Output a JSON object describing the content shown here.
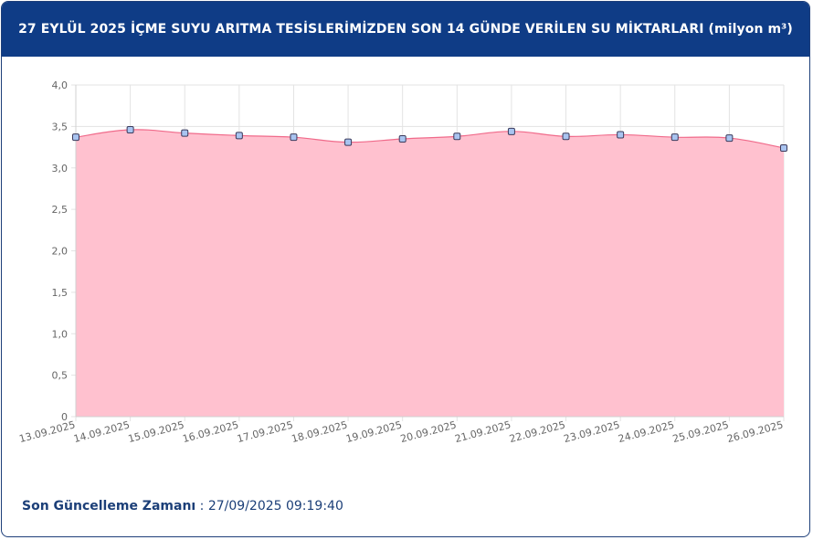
{
  "header": {
    "title": "27 EYLÜL 2025 İÇME SUYU ARITMA TESİSLERİMİZDEN SON 14 GÜNDE VERİLEN SU MİKTARLARI (milyon m³)"
  },
  "footer": {
    "label": "Son Güncelleme Zamanı",
    "separator": " : ",
    "value": "27/09/2025 09:19:40"
  },
  "colors": {
    "header_bg": "#0f3c86",
    "area_fill": "#ffc1cf",
    "line": "#f06a8a",
    "marker_fill": "#a9c4f0",
    "marker_stroke": "#3b3b5c",
    "grid": "#e3e3e3"
  },
  "chart_data": {
    "type": "area",
    "title": "",
    "xlabel": "",
    "ylabel": "",
    "ylim": [
      0,
      4
    ],
    "yticks": [
      "0",
      "0,5",
      "1,0",
      "1,5",
      "2,0",
      "2,5",
      "3,0",
      "3,5",
      "4,0"
    ],
    "grid": true,
    "legend": "none",
    "categories": [
      "13.09.2025",
      "14.09.2025",
      "15.09.2025",
      "16.09.2025",
      "17.09.2025",
      "18.09.2025",
      "19.09.2025",
      "20.09.2025",
      "21.09.2025",
      "22.09.2025",
      "23.09.2025",
      "24.09.2025",
      "25.09.2025",
      "26.09.2025"
    ],
    "series": [
      {
        "values": [
          3.37,
          3.46,
          3.42,
          3.39,
          3.37,
          3.31,
          3.35,
          3.38,
          3.44,
          3.38,
          3.4,
          3.37,
          3.36,
          3.24
        ]
      }
    ]
  }
}
